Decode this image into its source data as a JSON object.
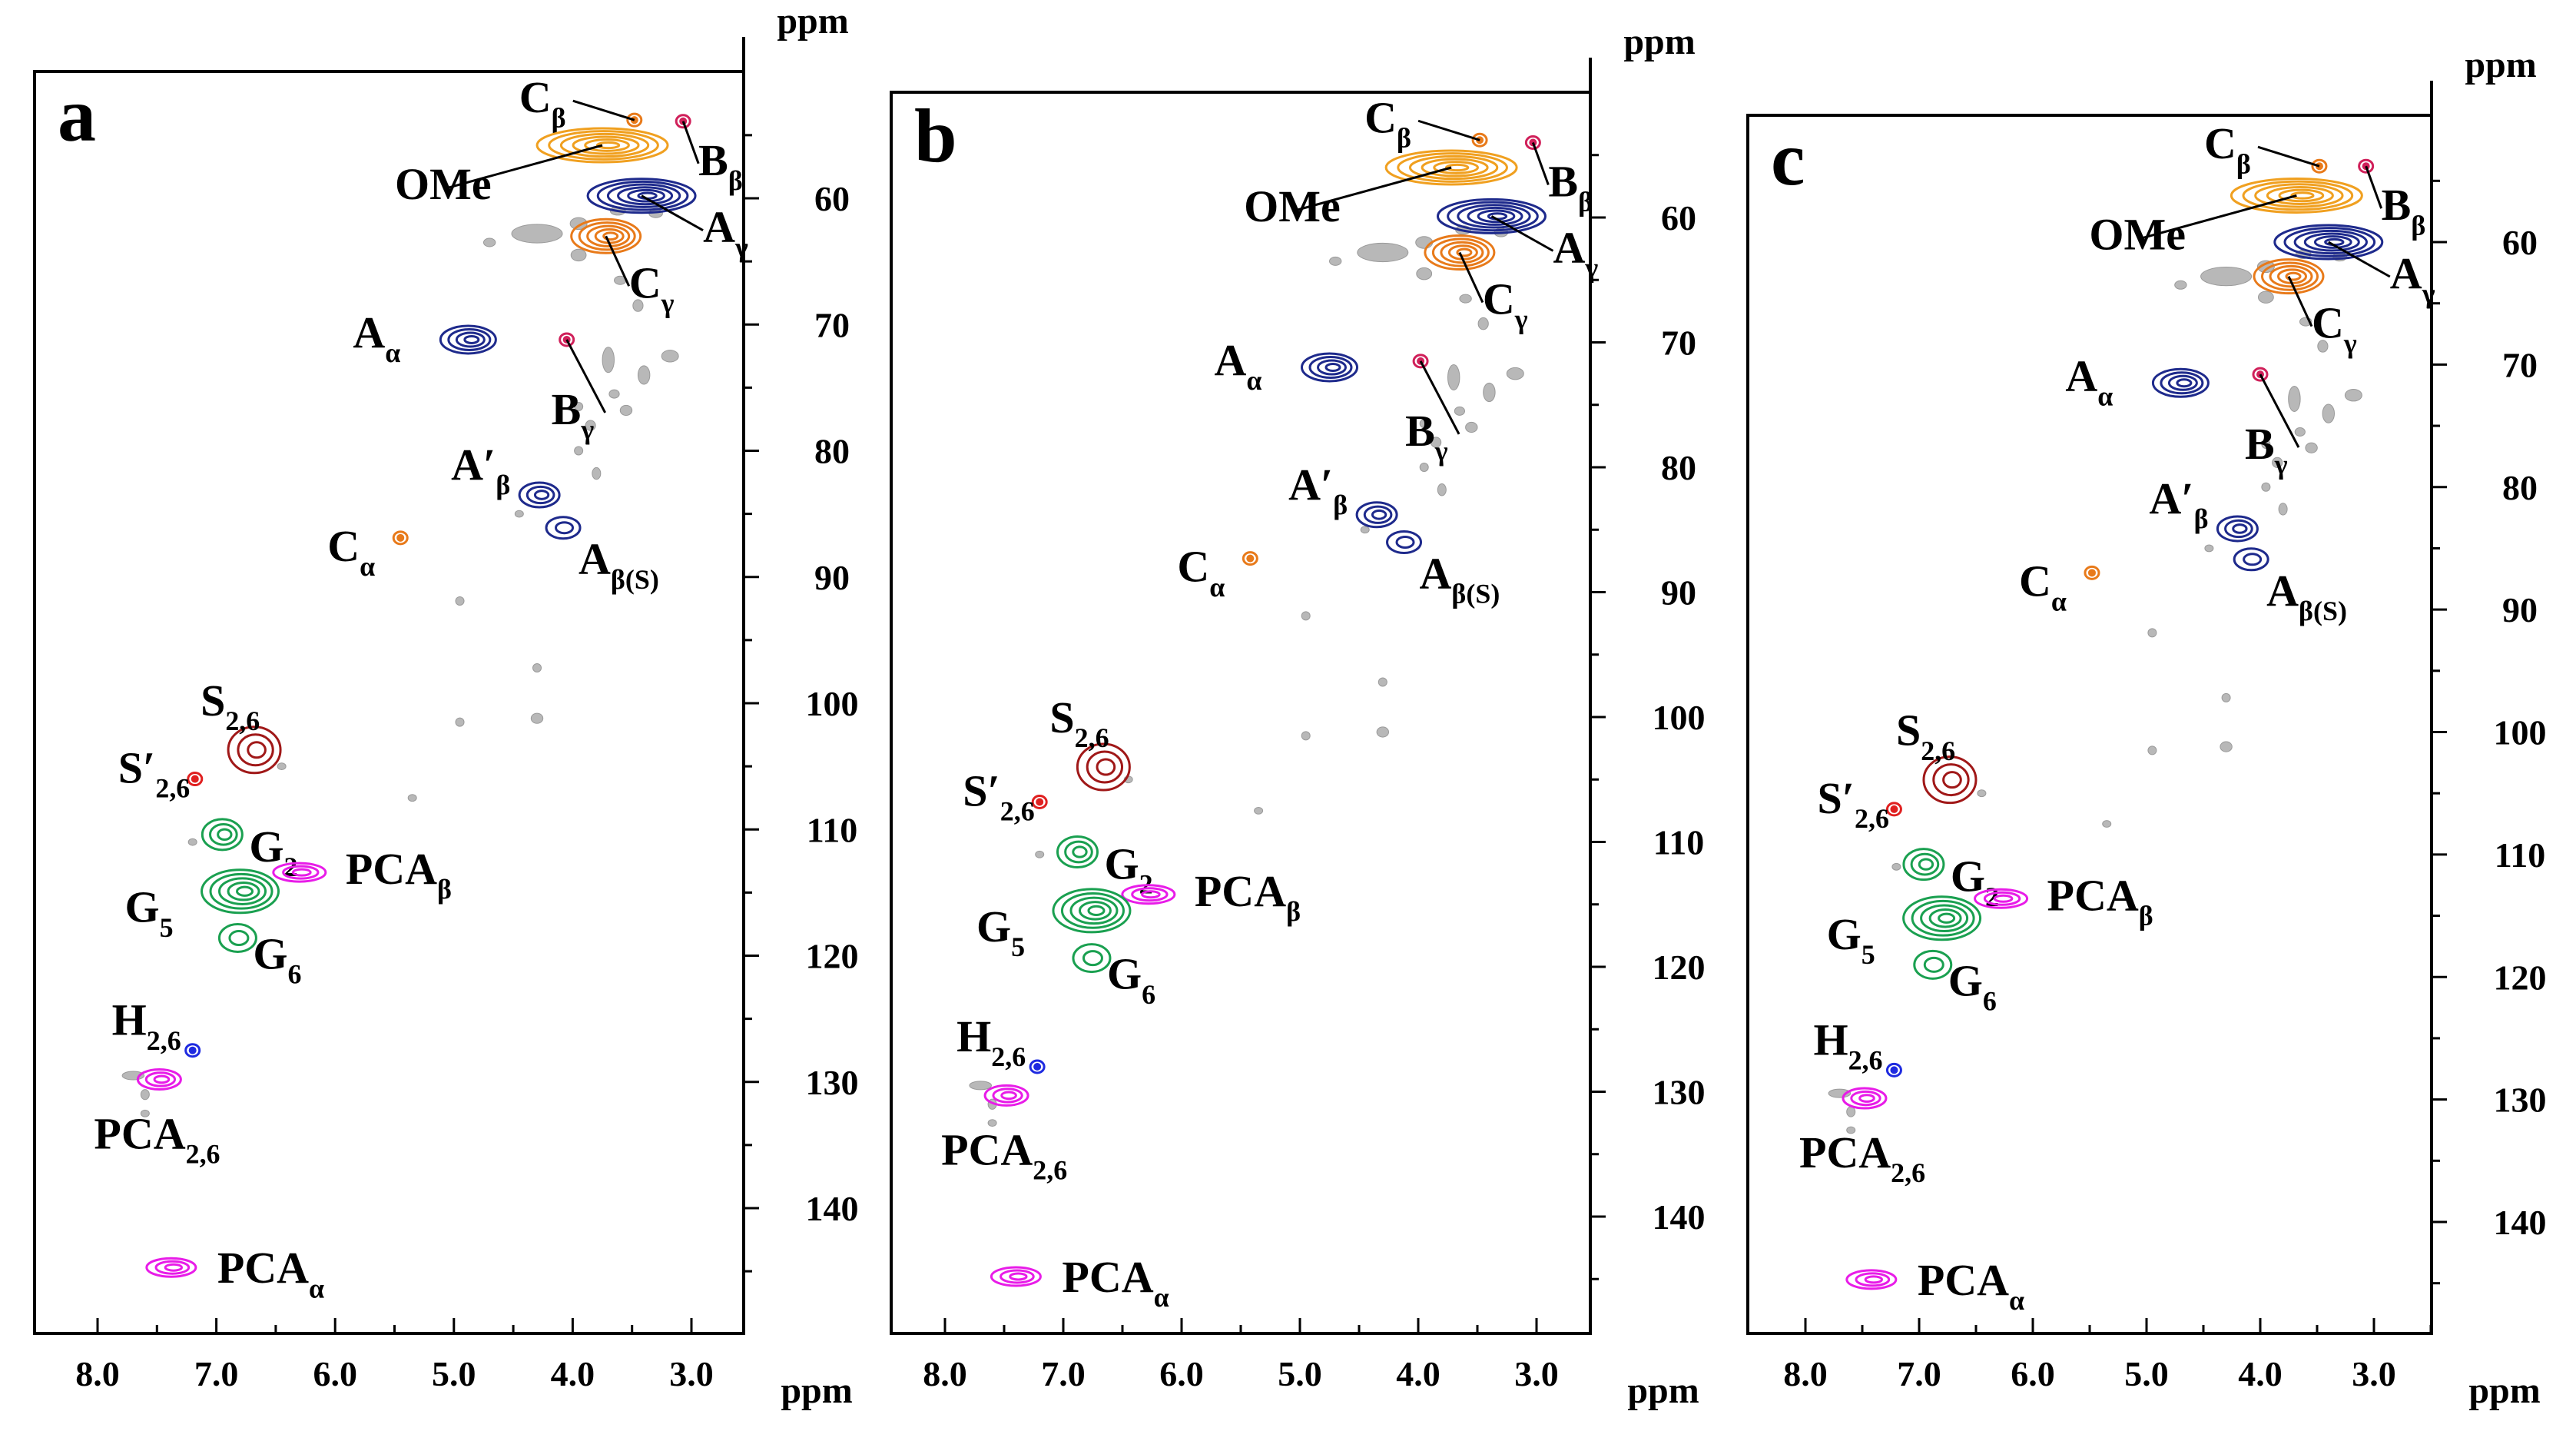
{
  "figure": {
    "x_unit": "ppm",
    "y_unit": "ppm",
    "x_ticks": [
      "8.0",
      "7.0",
      "6.0",
      "5.0",
      "4.0",
      "3.0"
    ],
    "y_ticks": [
      "60",
      "70",
      "80",
      "90",
      "100",
      "110",
      "120",
      "130",
      "140"
    ]
  },
  "colors": {
    "orange": "#F0A020",
    "orange_dark": "#E87A1A",
    "blue": "#1E2A8C",
    "green": "#1AA050",
    "darkred": "#A01818",
    "magenta": "#E81CE8",
    "red": "#E02020",
    "crimson": "#D0205A",
    "gray": "#9A9A9A"
  },
  "chart_data": [
    {
      "type": "scatter",
      "panel_label": "a",
      "x_axis": {
        "label": "ppm",
        "reversed": true,
        "range": [
          8.5,
          2.5
        ]
      },
      "y_axis": {
        "label": "ppm",
        "reversed": true,
        "range": [
          50,
          150
        ],
        "side": "right"
      },
      "series": [
        {
          "name": "Cβ",
          "label_main": "C",
          "label_sub": "β",
          "x": 3.48,
          "y": 53.8,
          "color": "#E87A1A"
        },
        {
          "name": "Bβ",
          "label_main": "B",
          "label_sub": "β",
          "x": 3.07,
          "y": 53.9,
          "color": "#D0205A"
        },
        {
          "name": "OMe",
          "label_main": "OMe",
          "label_sub": "",
          "x": 3.75,
          "y": 55.8,
          "color": "#F0A020"
        },
        {
          "name": "Aγ",
          "label_main": "A",
          "label_sub": "γ",
          "x": 3.42,
          "y": 59.8,
          "color": "#1E2A8C"
        },
        {
          "name": "Cγ",
          "label_main": "C",
          "label_sub": "γ",
          "x": 3.72,
          "y": 63.0,
          "color": "#E87A1A"
        },
        {
          "name": "Aα",
          "label_main": "A",
          "label_sub": "α",
          "x": 4.88,
          "y": 71.2,
          "color": "#1E2A8C"
        },
        {
          "name": "Bγ",
          "label_main": "B",
          "label_sub": "γ",
          "x": 4.05,
          "y": 71.2,
          "color": "#D0205A"
        },
        {
          "name": "A′β",
          "label_main": "A′",
          "label_sub": "β",
          "x": 4.28,
          "y": 83.5,
          "color": "#1E2A8C"
        },
        {
          "name": "Aβ(S)",
          "label_main": "A",
          "label_sub": "β(S)",
          "x": 4.08,
          "y": 86.1,
          "color": "#1E2A8C"
        },
        {
          "name": "Cα",
          "label_main": "C",
          "label_sub": "α",
          "x": 5.45,
          "y": 86.9,
          "color": "#E87A1A"
        },
        {
          "name": "S2,6",
          "label_main": "S",
          "label_sub": "2,6",
          "x": 6.68,
          "y": 103.7,
          "color": "#A01818"
        },
        {
          "name": "S′2,6",
          "label_main": "S′",
          "label_sub": "2,6",
          "x": 7.18,
          "y": 106.0,
          "color": "#E02020"
        },
        {
          "name": "G2",
          "label_main": "G",
          "label_sub": "2",
          "x": 6.95,
          "y": 110.4,
          "color": "#1AA050"
        },
        {
          "name": "PCAβ",
          "label_main": "PCA",
          "label_sub": "β",
          "x": 6.3,
          "y": 113.4,
          "color": "#E81CE8"
        },
        {
          "name": "G5",
          "label_main": "G",
          "label_sub": "5",
          "x": 6.8,
          "y": 114.9,
          "color": "#1AA050"
        },
        {
          "name": "G6",
          "label_main": "G",
          "label_sub": "6",
          "x": 6.82,
          "y": 118.6,
          "color": "#1AA050"
        },
        {
          "name": "H2,6",
          "label_main": "H",
          "label_sub": "2,6",
          "x": 7.2,
          "y": 127.5,
          "color": "#1E2AE0"
        },
        {
          "name": "PCA2,6",
          "label_main": "PCA",
          "label_sub": "2,6",
          "x": 7.48,
          "y": 129.8,
          "color": "#E81CE8"
        },
        {
          "name": "PCAα",
          "label_main": "PCA",
          "label_sub": "α",
          "x": 7.38,
          "y": 144.7,
          "color": "#E81CE8"
        }
      ]
    },
    {
      "type": "scatter",
      "panel_label": "b",
      "x_axis": {
        "label": "ppm",
        "reversed": true,
        "range": [
          8.5,
          2.5
        ]
      },
      "y_axis": {
        "label": "ppm",
        "reversed": true,
        "range": [
          50,
          150
        ],
        "side": "right"
      },
      "series": [
        {
          "name": "Cβ",
          "label_main": "C",
          "label_sub": "β",
          "x": 3.48,
          "y": 53.8,
          "color": "#E87A1A"
        },
        {
          "name": "Bβ",
          "label_main": "B",
          "label_sub": "β",
          "x": 3.03,
          "y": 54.0,
          "color": "#D0205A"
        },
        {
          "name": "OMe",
          "label_main": "OMe",
          "label_sub": "",
          "x": 3.72,
          "y": 56.0,
          "color": "#F0A020"
        },
        {
          "name": "Aγ",
          "label_main": "A",
          "label_sub": "γ",
          "x": 3.38,
          "y": 59.9,
          "color": "#1E2A8C"
        },
        {
          "name": "Cγ",
          "label_main": "C",
          "label_sub": "γ",
          "x": 3.65,
          "y": 62.8,
          "color": "#E87A1A"
        },
        {
          "name": "Aα",
          "label_main": "A",
          "label_sub": "α",
          "x": 4.75,
          "y": 72.0,
          "color": "#1E2A8C"
        },
        {
          "name": "Bγ",
          "label_main": "B",
          "label_sub": "γ",
          "x": 3.98,
          "y": 71.5,
          "color": "#D0205A"
        },
        {
          "name": "A′β",
          "label_main": "A′",
          "label_sub": "β",
          "x": 4.35,
          "y": 83.8,
          "color": "#1E2A8C"
        },
        {
          "name": "Aβ(S)",
          "label_main": "A",
          "label_sub": "β(S)",
          "x": 4.12,
          "y": 86.0,
          "color": "#1E2A8C"
        },
        {
          "name": "Cα",
          "label_main": "C",
          "label_sub": "α",
          "x": 5.42,
          "y": 87.3,
          "color": "#E87A1A"
        },
        {
          "name": "S2,6",
          "label_main": "S",
          "label_sub": "2,6",
          "x": 6.66,
          "y": 104.0,
          "color": "#A01818"
        },
        {
          "name": "S′2,6",
          "label_main": "S′",
          "label_sub": "2,6",
          "x": 7.2,
          "y": 106.8,
          "color": "#E02020"
        },
        {
          "name": "G2",
          "label_main": "G",
          "label_sub": "2",
          "x": 6.88,
          "y": 110.8,
          "color": "#1AA050"
        },
        {
          "name": "PCAβ",
          "label_main": "PCA",
          "label_sub": "β",
          "x": 6.28,
          "y": 114.2,
          "color": "#E81CE8"
        },
        {
          "name": "G5",
          "label_main": "G",
          "label_sub": "5",
          "x": 6.76,
          "y": 115.5,
          "color": "#1AA050"
        },
        {
          "name": "G6",
          "label_main": "G",
          "label_sub": "6",
          "x": 6.76,
          "y": 119.3,
          "color": "#1AA050"
        },
        {
          "name": "H2,6",
          "label_main": "H",
          "label_sub": "2,6",
          "x": 7.22,
          "y": 128.0,
          "color": "#1E2AE0"
        },
        {
          "name": "PCA2,6",
          "label_main": "PCA",
          "label_sub": "2,6",
          "x": 7.48,
          "y": 130.3,
          "color": "#E81CE8"
        },
        {
          "name": "PCAα",
          "label_main": "PCA",
          "label_sub": "α",
          "x": 7.4,
          "y": 144.8,
          "color": "#E81CE8"
        }
      ]
    },
    {
      "type": "scatter",
      "panel_label": "c",
      "x_axis": {
        "label": "ppm",
        "reversed": true,
        "range": [
          8.5,
          2.5
        ]
      },
      "y_axis": {
        "label": "ppm",
        "reversed": true,
        "range": [
          50,
          150
        ],
        "side": "right"
      },
      "series": [
        {
          "name": "Cβ",
          "label_main": "C",
          "label_sub": "β",
          "x": 3.48,
          "y": 53.8,
          "color": "#E87A1A"
        },
        {
          "name": "Bβ",
          "label_main": "B",
          "label_sub": "β",
          "x": 3.07,
          "y": 53.8,
          "color": "#D0205A"
        },
        {
          "name": "OMe",
          "label_main": "OMe",
          "label_sub": "",
          "x": 3.68,
          "y": 56.2,
          "color": "#F0A020"
        },
        {
          "name": "Aγ",
          "label_main": "A",
          "label_sub": "γ",
          "x": 3.4,
          "y": 60.0,
          "color": "#1E2A8C"
        },
        {
          "name": "Cγ",
          "label_main": "C",
          "label_sub": "γ",
          "x": 3.75,
          "y": 62.8,
          "color": "#E87A1A"
        },
        {
          "name": "Aα",
          "label_main": "A",
          "label_sub": "α",
          "x": 4.7,
          "y": 71.5,
          "color": "#1E2A8C"
        },
        {
          "name": "Bγ",
          "label_main": "B",
          "label_sub": "γ",
          "x": 4.0,
          "y": 70.8,
          "color": "#D0205A"
        },
        {
          "name": "A′β",
          "label_main": "A′",
          "label_sub": "β",
          "x": 4.2,
          "y": 83.4,
          "color": "#1E2A8C"
        },
        {
          "name": "Aβ(S)",
          "label_main": "A",
          "label_sub": "β(S)",
          "x": 4.08,
          "y": 85.9,
          "color": "#1E2A8C"
        },
        {
          "name": "Cα",
          "label_main": "C",
          "label_sub": "α",
          "x": 5.48,
          "y": 87.0,
          "color": "#E87A1A"
        },
        {
          "name": "S2,6",
          "label_main": "S",
          "label_sub": "2,6",
          "x": 6.73,
          "y": 103.9,
          "color": "#A01818"
        },
        {
          "name": "S′2,6",
          "label_main": "S′",
          "label_sub": "2,6",
          "x": 7.22,
          "y": 106.3,
          "color": "#E02020"
        },
        {
          "name": "G2",
          "label_main": "G",
          "label_sub": "2",
          "x": 6.96,
          "y": 110.8,
          "color": "#1AA050"
        },
        {
          "name": "PCAβ",
          "label_main": "PCA",
          "label_sub": "β",
          "x": 6.28,
          "y": 113.6,
          "color": "#E81CE8"
        },
        {
          "name": "G5",
          "label_main": "G",
          "label_sub": "5",
          "x": 6.8,
          "y": 115.2,
          "color": "#1AA050"
        },
        {
          "name": "G6",
          "label_main": "G",
          "label_sub": "6",
          "x": 6.88,
          "y": 119.0,
          "color": "#1AA050"
        },
        {
          "name": "H2,6",
          "label_main": "H",
          "label_sub": "2,6",
          "x": 7.22,
          "y": 127.6,
          "color": "#1E2AE0"
        },
        {
          "name": "PCA2,6",
          "label_main": "PCA",
          "label_sub": "2,6",
          "x": 7.48,
          "y": 129.9,
          "color": "#E81CE8"
        },
        {
          "name": "PCAα",
          "label_main": "PCA",
          "label_sub": "α",
          "x": 7.42,
          "y": 144.7,
          "color": "#E81CE8"
        }
      ],
      "unassigned_peaks_color": "#9A9A9A"
    }
  ]
}
